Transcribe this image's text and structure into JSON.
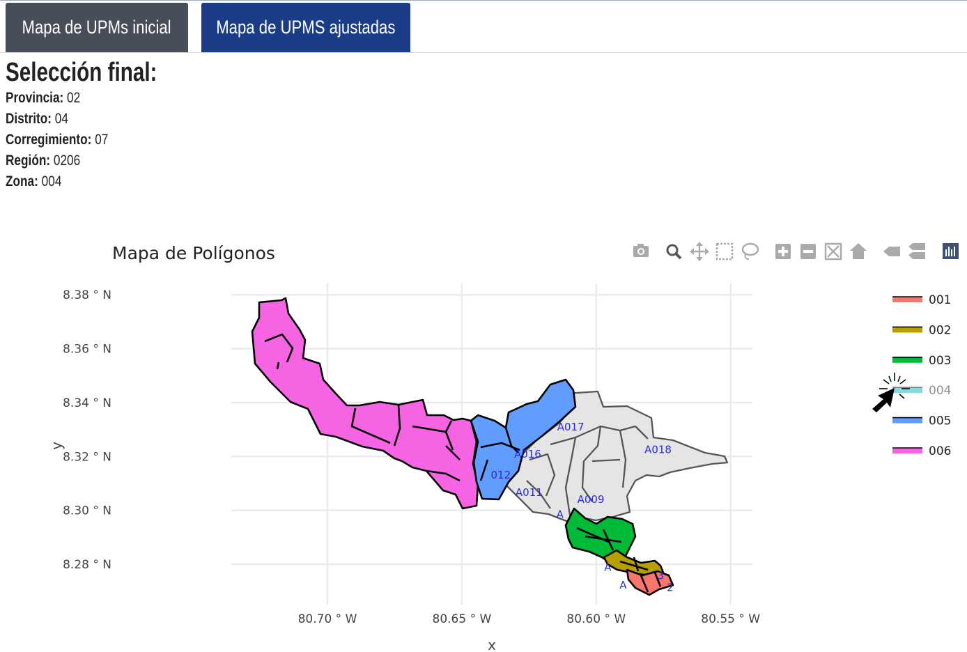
{
  "tabs": [
    {
      "label": "Mapa de UPMs inicial",
      "active": false
    },
    {
      "label": "Mapa de UPMS ajustadas",
      "active": true
    }
  ],
  "selection": {
    "title": "Selección final:",
    "fields": [
      {
        "label": "Provincia:",
        "value": "02"
      },
      {
        "label": "Distrito:",
        "value": "04"
      },
      {
        "label": "Corregimiento:",
        "value": "07"
      },
      {
        "label": "Región:",
        "value": "0206"
      },
      {
        "label": "Zona:",
        "value": "004"
      }
    ]
  },
  "modebar": [
    "camera-icon",
    "zoom-icon",
    "pan-icon",
    "box-select-icon",
    "lasso-select-icon",
    "zoom-in-icon",
    "zoom-out-icon",
    "autoscale-icon",
    "reset-axes-icon",
    "hover-closest-icon",
    "hover-compare-icon",
    "plotly-logo-icon"
  ],
  "chart_data": {
    "type": "map",
    "title": "Mapa de Polígonos",
    "xlabel": "x",
    "ylabel": "y",
    "xlim": [
      -80.735,
      -80.542
    ],
    "ylim": [
      8.265,
      8.386
    ],
    "xticks": [
      {
        "value": -80.7,
        "label": "80.70 ° W"
      },
      {
        "value": -80.65,
        "label": "80.65 ° W"
      },
      {
        "value": -80.6,
        "label": "80.60 ° W"
      },
      {
        "value": -80.55,
        "label": "80.55 ° W"
      }
    ],
    "yticks": [
      {
        "value": 8.38,
        "label": "8.38 ° N"
      },
      {
        "value": 8.36,
        "label": "8.36 ° N"
      },
      {
        "value": 8.34,
        "label": "8.34 ° N"
      },
      {
        "value": 8.32,
        "label": "8.32 ° N"
      },
      {
        "value": 8.3,
        "label": "8.30 ° N"
      },
      {
        "value": 8.28,
        "label": "8.28 ° N"
      }
    ],
    "grid": true,
    "legend_position": "right",
    "series": [
      {
        "name": "001",
        "color": "#f8766d",
        "visible": true
      },
      {
        "name": "002",
        "color": "#b79f00",
        "visible": true
      },
      {
        "name": "003",
        "color": "#00ba38",
        "visible": true
      },
      {
        "name": "004",
        "color": "#00bfc4",
        "visible": false
      },
      {
        "name": "005",
        "color": "#619cff",
        "visible": true
      },
      {
        "name": "006",
        "color": "#f564e3",
        "visible": true
      }
    ],
    "labels": [
      {
        "text": "A017",
        "lon": -80.6095,
        "lat": 8.3297
      },
      {
        "text": "A016",
        "lon": -80.6255,
        "lat": 8.3195
      },
      {
        "text": "A018",
        "lon": -80.577,
        "lat": 8.3212
      },
      {
        "text": "012",
        "lon": -80.6355,
        "lat": 8.3118
      },
      {
        "text": "A011",
        "lon": -80.625,
        "lat": 8.3053
      },
      {
        "text": "A009",
        "lon": -80.602,
        "lat": 8.3028
      },
      {
        "text": "A",
        "lon": -80.6135,
        "lat": 8.2972
      },
      {
        "text": "A",
        "lon": -80.5957,
        "lat": 8.2775
      },
      {
        "text": "A",
        "lon": -80.59,
        "lat": 8.271
      },
      {
        "text": "3",
        "lon": -80.576,
        "lat": 8.2745
      },
      {
        "text": "2",
        "lon": -80.5725,
        "lat": 8.27
      }
    ]
  }
}
